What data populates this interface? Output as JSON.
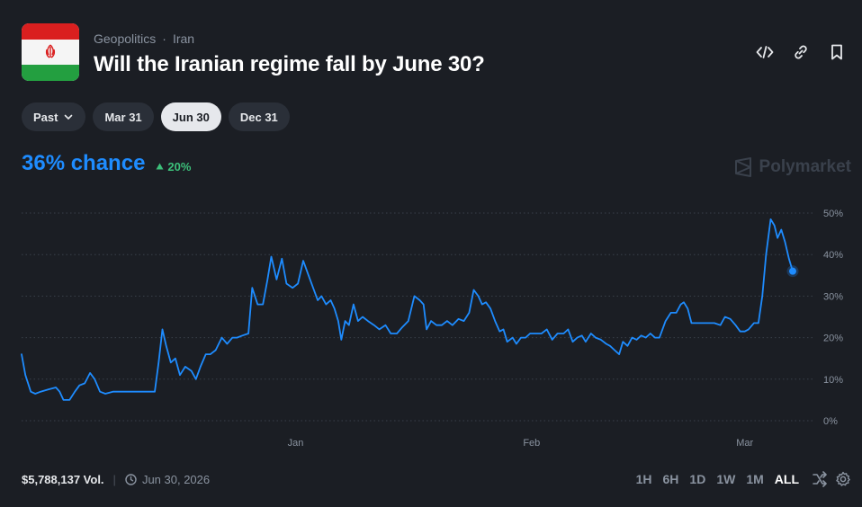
{
  "header": {
    "category": "Geopolitics",
    "subcategory": "Iran",
    "title": "Will the Iranian regime fall by June 30?",
    "icons": [
      "code-icon",
      "link-icon",
      "bookmark-icon"
    ]
  },
  "tabs": [
    {
      "label": "Past",
      "active": false,
      "has_chevron": true
    },
    {
      "label": "Mar 31",
      "active": false
    },
    {
      "label": "Jun 30",
      "active": true
    },
    {
      "label": "Dec 31",
      "active": false
    }
  ],
  "chance": {
    "label": "36% chance",
    "delta": "20%",
    "direction": "up"
  },
  "brand": "Polymarket",
  "footer": {
    "volume": "$5,788,137 Vol.",
    "end_date": "Jun 30, 2026"
  },
  "ranges": [
    {
      "label": "1H",
      "active": false
    },
    {
      "label": "6H",
      "active": false
    },
    {
      "label": "1D",
      "active": false
    },
    {
      "label": "1W",
      "active": false
    },
    {
      "label": "1M",
      "active": false
    },
    {
      "label": "ALL",
      "active": true
    }
  ],
  "colors": {
    "accent": "#1e8cff",
    "positive": "#3cc07a",
    "background": "#1b1e24"
  },
  "chart_data": {
    "type": "line",
    "y_ticks": [
      "50%",
      "40%",
      "30%",
      "20%",
      "10%",
      "0%"
    ],
    "ylim": [
      0,
      50
    ],
    "x_ticks": [
      {
        "label": "Jan",
        "x": 36
      },
      {
        "label": "Feb",
        "x": 67
      },
      {
        "label": "Mar",
        "x": 95
      }
    ],
    "xlim": [
      0,
      100
    ],
    "grid": true,
    "series": [
      {
        "color": "#1e8cff",
        "values": [
          [
            0,
            16
          ],
          [
            0.5,
            11
          ],
          [
            1.2,
            7
          ],
          [
            1.8,
            6.5
          ],
          [
            2.5,
            7
          ],
          [
            3.5,
            7.5
          ],
          [
            4.5,
            8
          ],
          [
            5,
            7
          ],
          [
            5.5,
            5
          ],
          [
            6.3,
            5
          ],
          [
            7,
            7
          ],
          [
            7.6,
            8.5
          ],
          [
            8.3,
            9
          ],
          [
            9,
            11.5
          ],
          [
            9.6,
            10
          ],
          [
            10.3,
            7
          ],
          [
            11,
            6.5
          ],
          [
            12,
            7
          ],
          [
            14,
            7
          ],
          [
            16,
            7
          ],
          [
            17.5,
            7
          ],
          [
            18,
            14
          ],
          [
            18.5,
            22
          ],
          [
            19,
            18
          ],
          [
            19.6,
            14
          ],
          [
            20.2,
            15
          ],
          [
            20.8,
            11
          ],
          [
            21.5,
            13
          ],
          [
            22.3,
            12
          ],
          [
            22.9,
            10
          ],
          [
            23.5,
            13
          ],
          [
            24.2,
            16
          ],
          [
            24.8,
            16
          ],
          [
            25.5,
            17
          ],
          [
            26.3,
            20
          ],
          [
            27,
            18.5
          ],
          [
            27.7,
            20
          ],
          [
            28.3,
            20
          ],
          [
            29,
            20.5
          ],
          [
            29.8,
            21
          ],
          [
            30.3,
            32
          ],
          [
            31,
            28
          ],
          [
            31.7,
            28
          ],
          [
            32.3,
            34
          ],
          [
            32.8,
            39.5
          ],
          [
            33.5,
            34
          ],
          [
            34.2,
            39
          ],
          [
            34.8,
            33
          ],
          [
            35.6,
            32
          ],
          [
            36.3,
            33
          ],
          [
            37,
            38.5
          ],
          [
            37.7,
            35
          ],
          [
            38.3,
            32
          ],
          [
            38.9,
            29
          ],
          [
            39.4,
            30
          ],
          [
            40,
            28
          ],
          [
            40.6,
            29
          ],
          [
            41.1,
            27
          ],
          [
            41.6,
            24
          ],
          [
            42,
            19.5
          ],
          [
            42.5,
            24
          ],
          [
            43,
            23
          ],
          [
            43.6,
            28
          ],
          [
            44.2,
            24
          ],
          [
            44.8,
            25
          ],
          [
            45.5,
            24
          ],
          [
            46.3,
            23
          ],
          [
            47,
            22
          ],
          [
            47.8,
            23
          ],
          [
            48.5,
            21
          ],
          [
            49.3,
            21
          ],
          [
            50,
            22.5
          ],
          [
            50.8,
            24
          ],
          [
            51.6,
            30
          ],
          [
            52.3,
            29
          ],
          [
            52.8,
            28
          ],
          [
            53.2,
            22
          ],
          [
            53.8,
            24
          ],
          [
            54.5,
            23
          ],
          [
            55.2,
            23
          ],
          [
            55.9,
            24
          ],
          [
            56.6,
            23
          ],
          [
            57.4,
            24.5
          ],
          [
            58.1,
            24
          ],
          [
            58.8,
            26
          ],
          [
            59.4,
            31.5
          ],
          [
            60,
            30
          ],
          [
            60.5,
            28
          ],
          [
            61,
            28.5
          ],
          [
            61.6,
            27
          ],
          [
            62.2,
            24
          ],
          [
            62.8,
            21.5
          ],
          [
            63.3,
            22
          ],
          [
            63.8,
            19
          ],
          [
            64.5,
            20
          ],
          [
            65,
            18.5
          ],
          [
            65.6,
            20
          ],
          [
            66.2,
            20
          ],
          [
            66.8,
            21
          ],
          [
            67.5,
            21
          ],
          [
            68.3,
            21
          ],
          [
            69,
            22
          ],
          [
            69.7,
            19.5
          ],
          [
            70.4,
            21
          ],
          [
            71.2,
            21
          ],
          [
            71.8,
            22
          ],
          [
            72.4,
            19
          ],
          [
            73,
            20
          ],
          [
            73.6,
            20.5
          ],
          [
            74.1,
            19
          ],
          [
            74.8,
            21
          ],
          [
            75.4,
            20
          ],
          [
            76.1,
            19.5
          ],
          [
            76.8,
            18.5
          ],
          [
            77.3,
            18
          ],
          [
            77.9,
            17
          ],
          [
            78.5,
            16
          ],
          [
            79,
            19
          ],
          [
            79.6,
            18
          ],
          [
            80.2,
            20
          ],
          [
            80.8,
            19.5
          ],
          [
            81.4,
            20.5
          ],
          [
            82,
            20
          ],
          [
            82.6,
            21
          ],
          [
            83.2,
            20
          ],
          [
            83.8,
            20
          ],
          [
            84.6,
            24
          ],
          [
            85.3,
            26
          ],
          [
            86,
            26
          ],
          [
            86.6,
            28
          ],
          [
            87,
            28.5
          ],
          [
            87.5,
            27
          ],
          [
            88,
            23.5
          ],
          [
            89,
            23.5
          ],
          [
            90,
            23.5
          ],
          [
            91,
            23.5
          ],
          [
            91.8,
            23
          ],
          [
            92.4,
            25
          ],
          [
            93.1,
            24.5
          ],
          [
            93.8,
            23
          ],
          [
            94.4,
            21.5
          ],
          [
            95,
            21.5
          ],
          [
            95.5,
            22
          ],
          [
            96.2,
            23.5
          ],
          [
            96.8,
            23.5
          ],
          [
            97.3,
            30
          ],
          [
            97.8,
            40
          ],
          [
            98.4,
            48.5
          ],
          [
            98.9,
            47
          ],
          [
            99.3,
            44
          ],
          [
            99.8,
            46
          ],
          [
            100.3,
            43
          ],
          [
            100.8,
            39
          ],
          [
            101.3,
            36
          ]
        ]
      }
    ],
    "current_point": [
      101.3,
      36
    ]
  }
}
